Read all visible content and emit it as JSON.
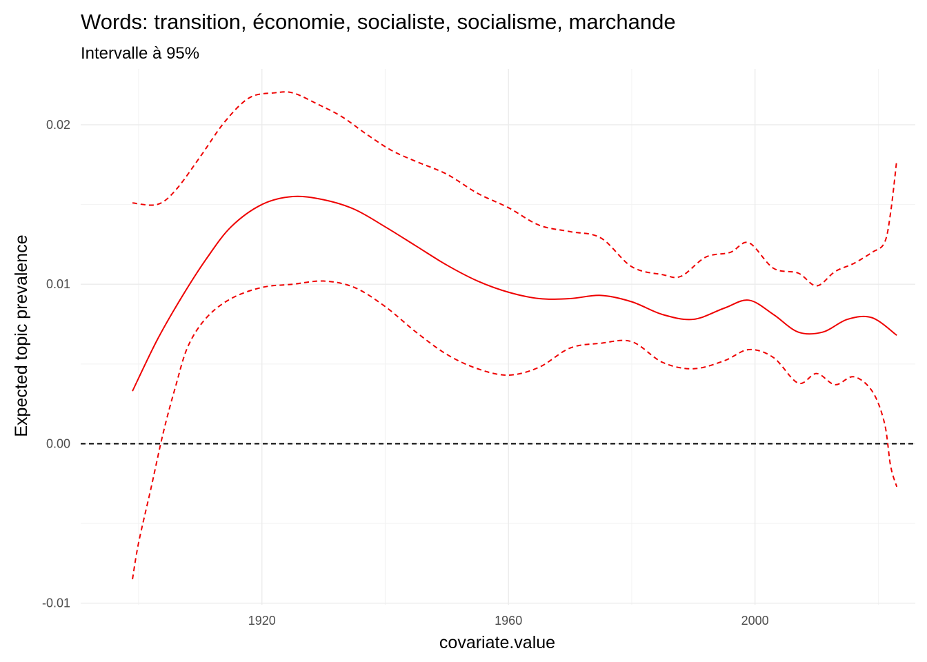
{
  "chart_data": {
    "type": "line",
    "title": "Words: transition, économie, socialiste, socialisme, marchande",
    "subtitle": "Intervalle à 95%",
    "xlabel": "covariate.value",
    "ylabel": "Expected topic prevalence",
    "xlim": [
      1890.6,
      2026
    ],
    "ylim": [
      -0.0101,
      0.0235
    ],
    "x_ticks": [
      1920,
      1960,
      2000
    ],
    "x_tick_labels": [
      "1920",
      "1960",
      "2000"
    ],
    "y_ticks": [
      -0.01,
      0.0,
      0.01,
      0.02
    ],
    "y_tick_labels": [
      "-0.01",
      "0.00",
      "0.01",
      "0.02"
    ],
    "reference_line": {
      "y": 0.0,
      "style": "dashed",
      "color": "#000000"
    },
    "grid": true,
    "legend": "none",
    "colors": {
      "series": "#ee0000",
      "reference": "#000000"
    },
    "series": [
      {
        "role": "estimate",
        "style": "solid",
        "x": [
          1899,
          1903,
          1907,
          1911,
          1915,
          1920,
          1925,
          1930,
          1935,
          1940,
          1945,
          1950,
          1955,
          1960,
          1965,
          1970,
          1975,
          1980,
          1985,
          1990,
          1995,
          1999,
          2003,
          2007,
          2011,
          2015,
          2019,
          2023
        ],
        "y": [
          0.0033,
          0.0065,
          0.0092,
          0.0116,
          0.0136,
          0.015,
          0.0155,
          0.0153,
          0.0147,
          0.0136,
          0.0124,
          0.0112,
          0.0102,
          0.0095,
          0.0091,
          0.0091,
          0.0093,
          0.0089,
          0.0081,
          0.0078,
          0.0085,
          0.009,
          0.0081,
          0.007,
          0.007,
          0.0078,
          0.0079,
          0.0068
        ]
      },
      {
        "role": "upper bound",
        "style": "dashed",
        "x": [
          1899,
          1903,
          1906,
          1910,
          1914,
          1918,
          1922,
          1925,
          1929,
          1933,
          1937,
          1941,
          1945,
          1950,
          1955,
          1960,
          1965,
          1970,
          1975,
          1980,
          1985,
          1988,
          1992,
          1996,
          1999,
          2003,
          2007,
          2010,
          2013,
          2016,
          2019,
          2021,
          2022,
          2023
        ],
        "y": [
          0.0151,
          0.015,
          0.0159,
          0.018,
          0.0202,
          0.0217,
          0.022,
          0.022,
          0.0213,
          0.0205,
          0.0194,
          0.0184,
          0.0177,
          0.0169,
          0.0157,
          0.0148,
          0.0137,
          0.0133,
          0.0129,
          0.0111,
          0.0106,
          0.0105,
          0.0117,
          0.012,
          0.0126,
          0.011,
          0.0107,
          0.0099,
          0.0108,
          0.0113,
          0.012,
          0.0126,
          0.0145,
          0.0178
        ]
      },
      {
        "role": "lower bound",
        "style": "dashed",
        "x": [
          1899,
          1900,
          1902,
          1904,
          1906,
          1908,
          1911,
          1915,
          1920,
          1925,
          1930,
          1935,
          1940,
          1945,
          1950,
          1955,
          1960,
          1965,
          1970,
          1975,
          1980,
          1985,
          1990,
          1995,
          1999,
          2003,
          2007,
          2010,
          2013,
          2016,
          2019,
          2021,
          2022,
          2023
        ],
        "y": [
          -0.0085,
          -0.0062,
          -0.0028,
          0.0007,
          0.0036,
          0.0061,
          0.0079,
          0.0091,
          0.0098,
          0.01,
          0.0102,
          0.0098,
          0.0086,
          0.007,
          0.0056,
          0.0047,
          0.0043,
          0.0048,
          0.006,
          0.0063,
          0.0064,
          0.0051,
          0.0047,
          0.0052,
          0.0059,
          0.0054,
          0.0038,
          0.0044,
          0.0037,
          0.0042,
          0.0033,
          0.0013,
          -0.0014,
          -0.0027
        ]
      }
    ]
  }
}
